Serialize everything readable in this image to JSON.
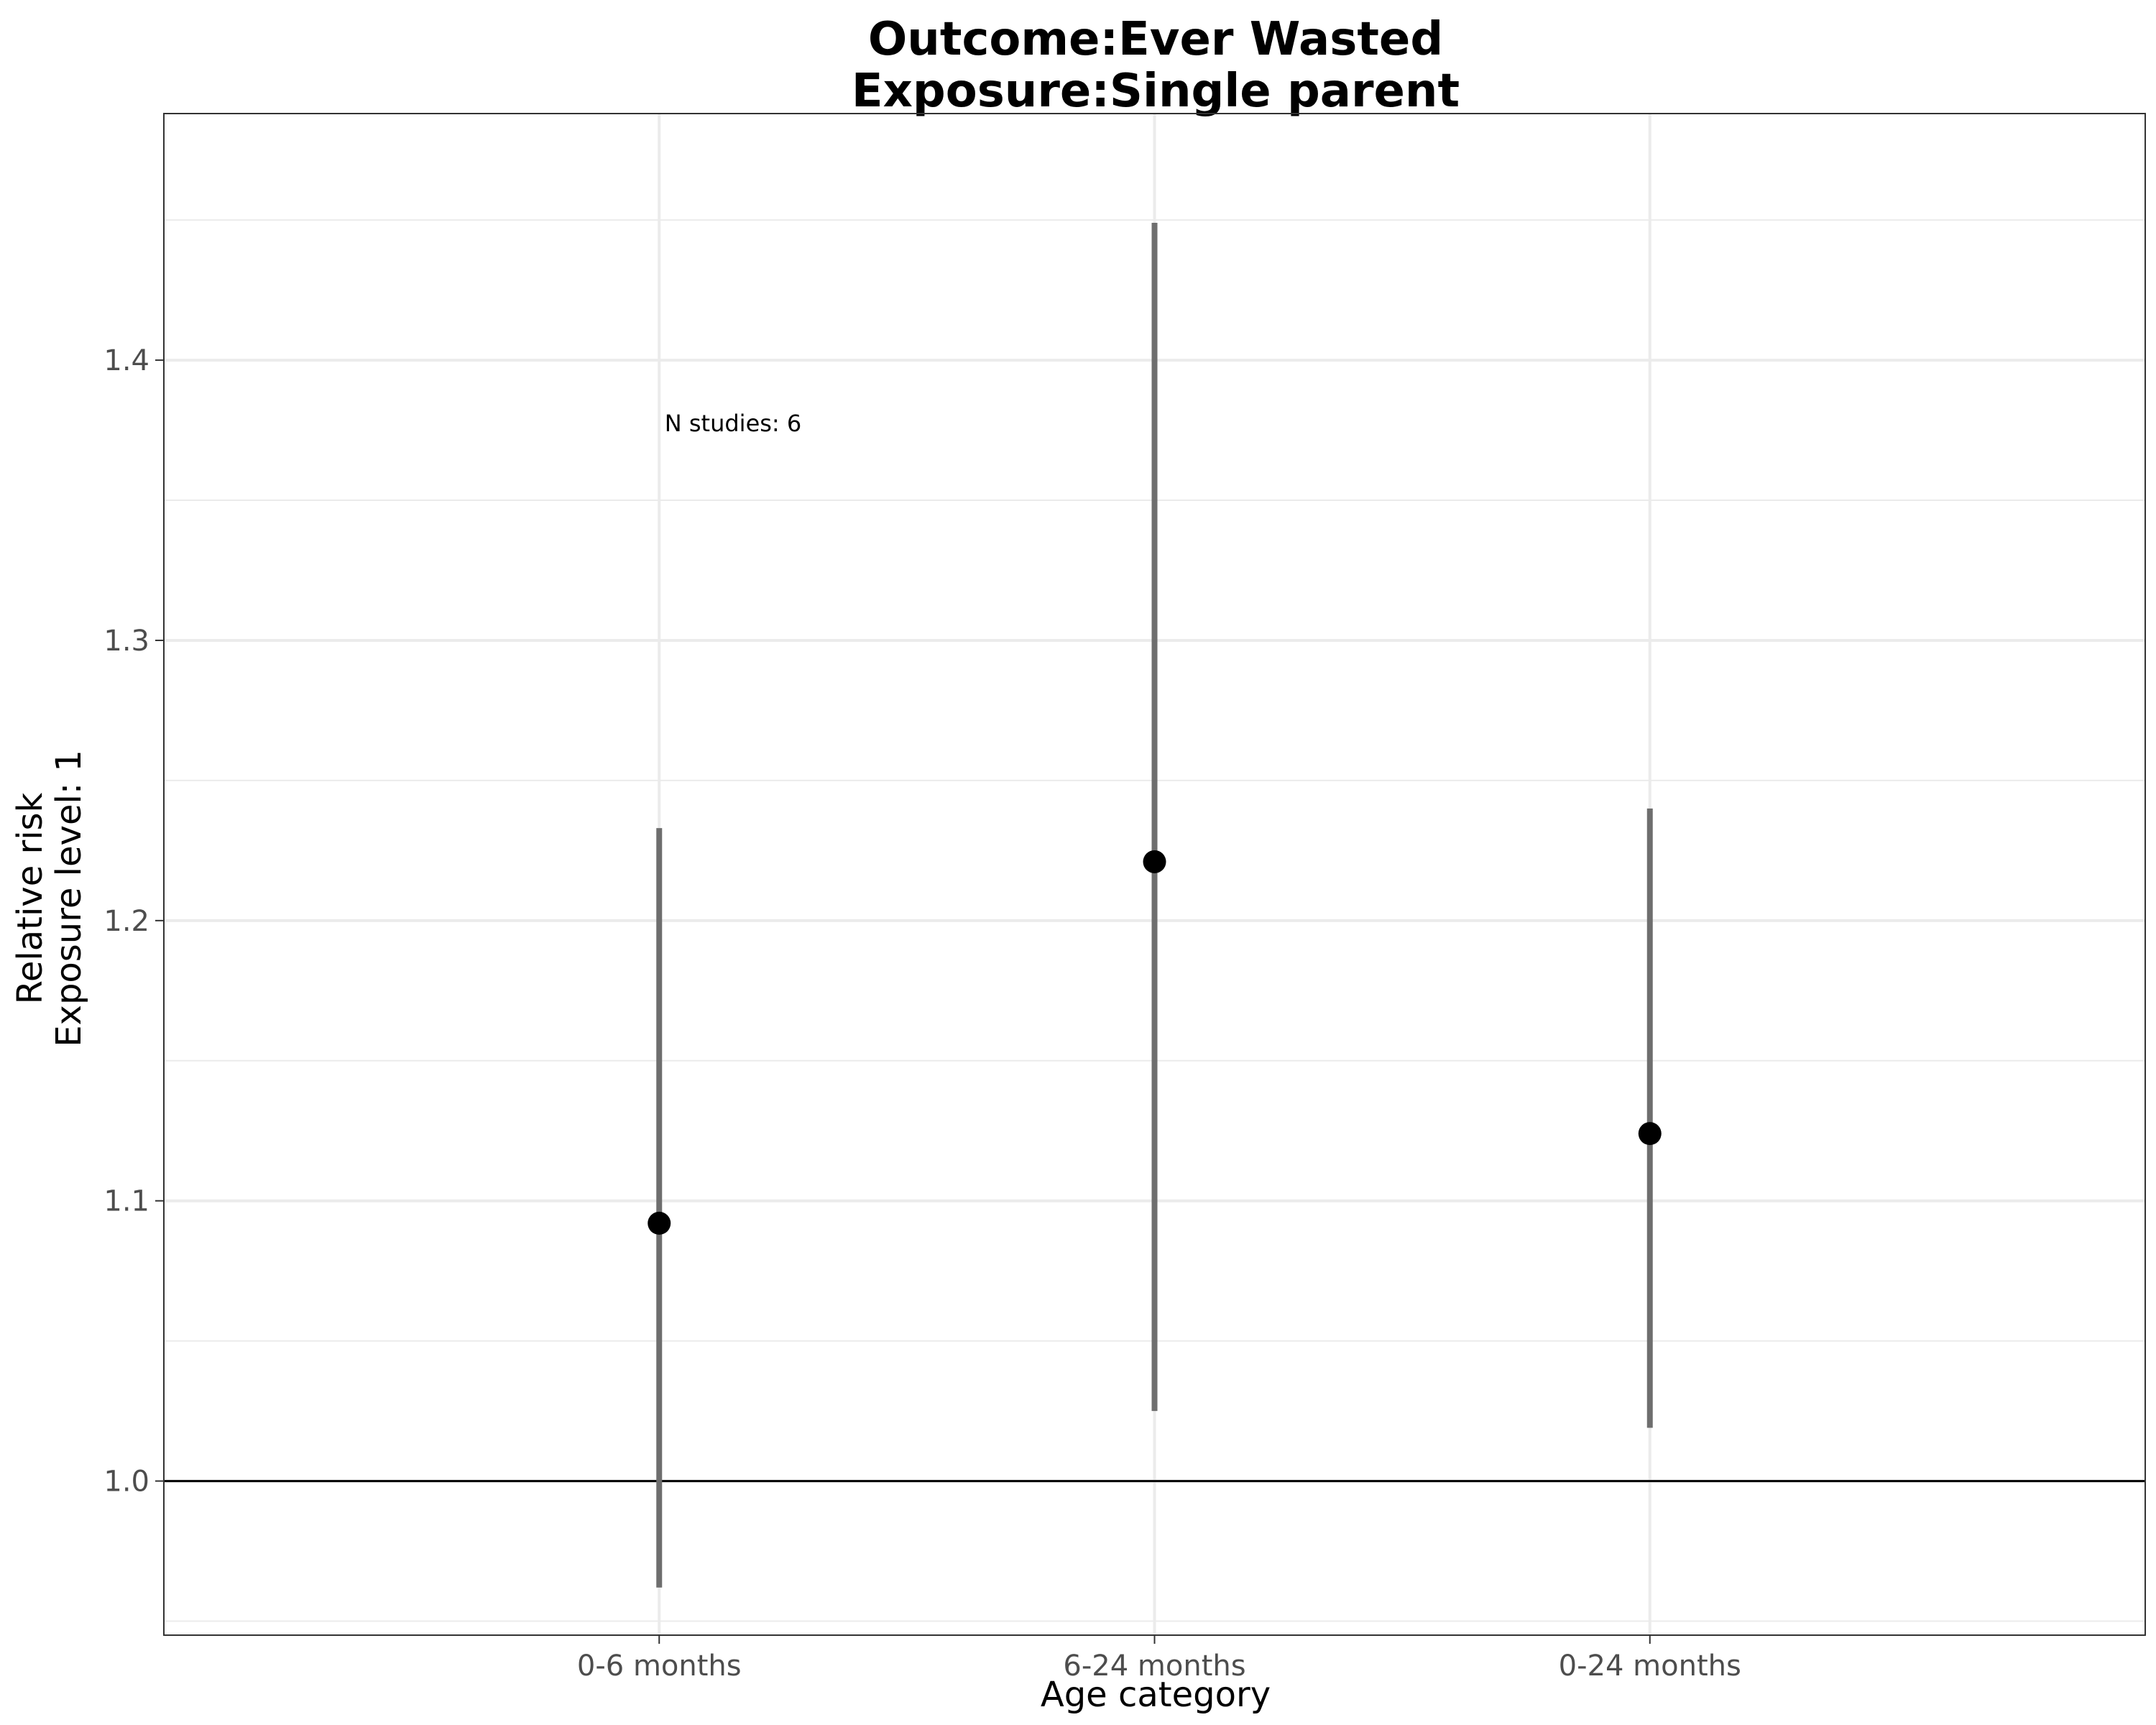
{
  "chart_data": {
    "type": "scatter",
    "title": "Outcome:Ever Wasted",
    "subtitle": "Exposure:Single parent",
    "xlabel": "Age category",
    "ylabel": "Relative risk",
    "ylabel2": "Exposure level: 1",
    "annotation": "N studies: 6",
    "categories": [
      "0-6 months",
      "6-24 months",
      "0-24 months"
    ],
    "estimates": [
      1.092,
      1.221,
      1.124
    ],
    "ci_lower": [
      0.962,
      1.025,
      1.019
    ],
    "ci_upper": [
      1.233,
      1.449,
      1.24
    ],
    "reference_line": 1.0,
    "ylim": [
      0.945,
      1.488
    ],
    "yticks": [
      1.0,
      1.1,
      1.2,
      1.3,
      1.4
    ],
    "ytick_labels": [
      "1.0",
      "1.1",
      "1.2",
      "1.3",
      "1.4"
    ],
    "grid": true,
    "colors": {
      "point": "#000000",
      "errorbar": "#6e6e6e",
      "grid": "#ebebeb",
      "reference": "#000000"
    }
  }
}
